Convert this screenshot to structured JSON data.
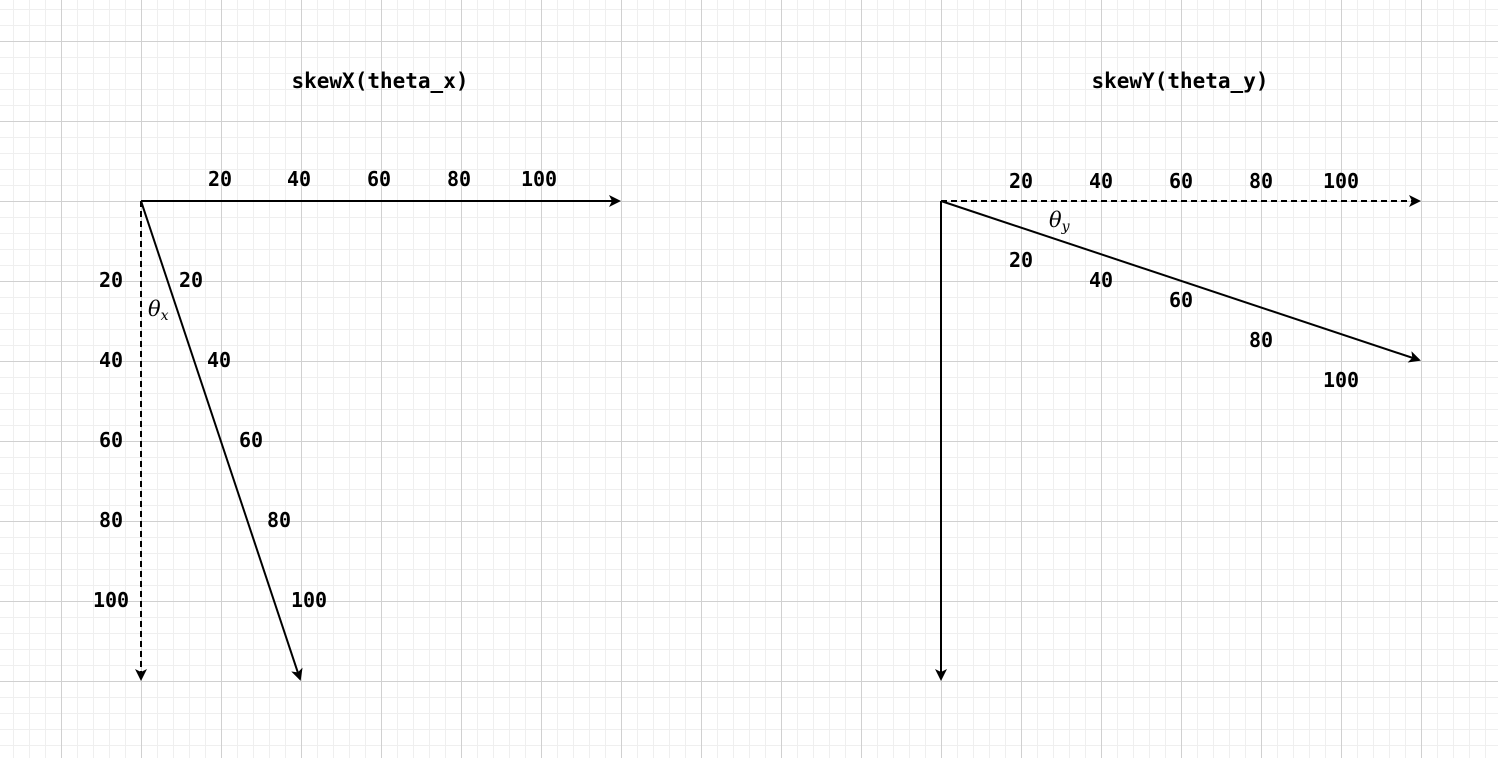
{
  "diagrams": {
    "skew_x": {
      "title": "skewX(theta_x)",
      "angle_symbol": "θ",
      "angle_subscript": "x",
      "top_ticks": [
        "20",
        "40",
        "60",
        "80",
        "100"
      ],
      "left_ticks": [
        "20",
        "40",
        "60",
        "80",
        "100"
      ],
      "skewed_ticks": [
        "20",
        "40",
        "60",
        "80",
        "100"
      ]
    },
    "skew_y": {
      "title": "skewY(theta_y)",
      "angle_symbol": "θ",
      "angle_subscript": "y",
      "top_ticks": [
        "20",
        "40",
        "60",
        "80",
        "100"
      ],
      "skewed_ticks": [
        "20",
        "40",
        "60",
        "80",
        "100"
      ]
    }
  }
}
